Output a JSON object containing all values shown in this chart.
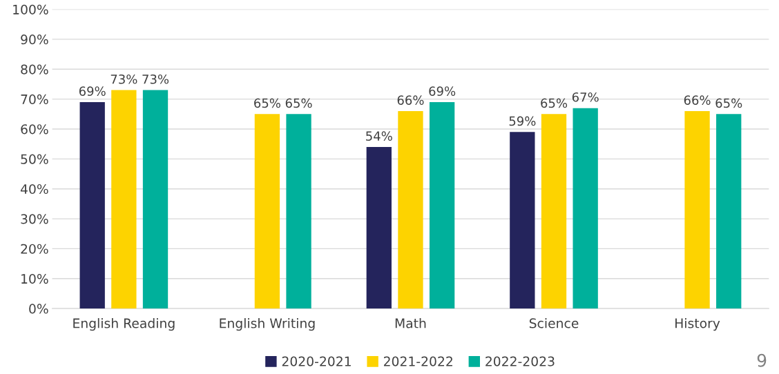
{
  "chart_data": {
    "type": "bar",
    "categories": [
      "English Reading",
      "English Writing",
      "Math",
      "Science",
      "History"
    ],
    "series": [
      {
        "name": "2020-2021",
        "color": "#24245c",
        "values": [
          69,
          null,
          54,
          59,
          null
        ],
        "value_labels": [
          "69%",
          null,
          "54%",
          "59%",
          null
        ]
      },
      {
        "name": "2021-2022",
        "color": "#fdd300",
        "values": [
          73,
          65,
          66,
          65,
          66
        ],
        "value_labels": [
          "73%",
          "65%",
          "66%",
          "65%",
          "66%"
        ]
      },
      {
        "name": "2022-2023",
        "color": "#00b09b",
        "values": [
          73,
          65,
          69,
          67,
          65
        ],
        "value_labels": [
          "73%",
          "65%",
          "69%",
          "67%",
          "65%"
        ]
      }
    ],
    "ylim": [
      0,
      100
    ],
    "yticks": [
      {
        "value": 0,
        "label": "0%"
      },
      {
        "value": 10,
        "label": "10%"
      },
      {
        "value": 20,
        "label": "20%"
      },
      {
        "value": 30,
        "label": "30%"
      },
      {
        "value": 40,
        "label": "40%"
      },
      {
        "value": 50,
        "label": "50%"
      },
      {
        "value": 60,
        "label": "60%"
      },
      {
        "value": 70,
        "label": "70%"
      },
      {
        "value": 80,
        "label": "80%"
      },
      {
        "value": 90,
        "label": "90%"
      },
      {
        "value": 100,
        "label": "100%"
      }
    ],
    "grid": "y",
    "legend": "bottom",
    "annotations": [
      "9"
    ]
  }
}
